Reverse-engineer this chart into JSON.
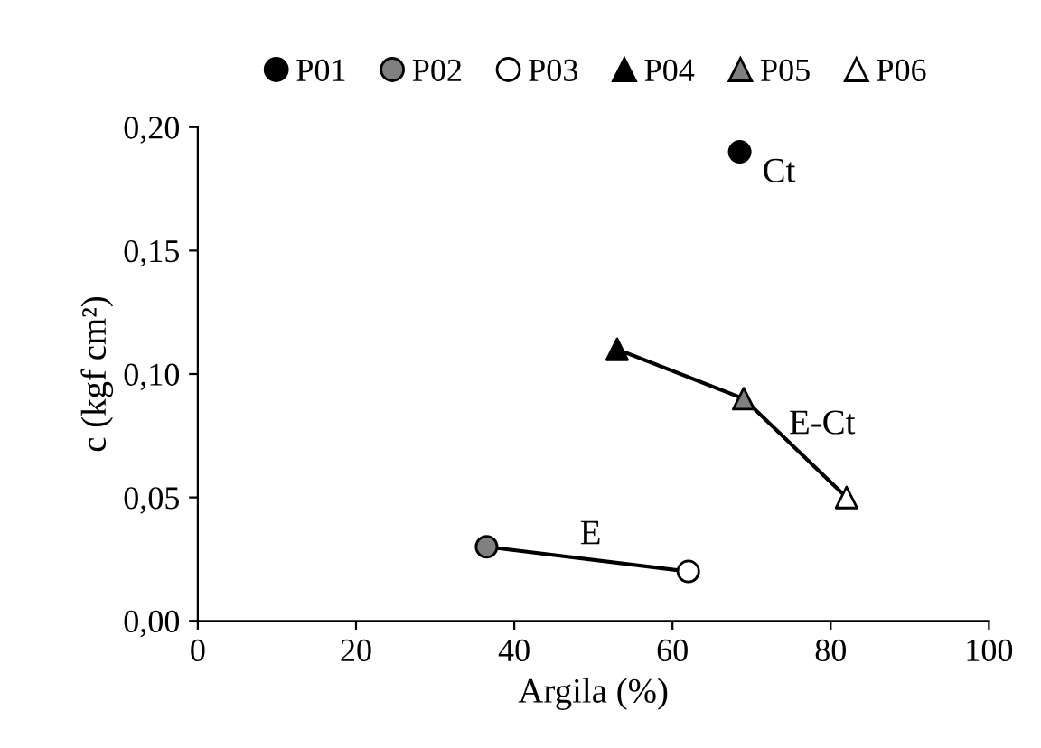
{
  "chart_data": {
    "type": "scatter",
    "xlabel": "Argila (%)",
    "ylabel": "c (kgf cm²)",
    "xlim": [
      0,
      100
    ],
    "xticks": [
      0,
      20,
      40,
      60,
      80,
      100
    ],
    "ylim": [
      0,
      0.2
    ],
    "yticks": [
      {
        "value": 0,
        "label": "0,00"
      },
      {
        "value": 0.05,
        "label": "0,05"
      },
      {
        "value": 0.1,
        "label": "0,10"
      },
      {
        "value": 0.15,
        "label": "0,15"
      },
      {
        "value": 0.2,
        "label": "0,20"
      }
    ],
    "grid": false,
    "legend": "top",
    "series": [
      {
        "type": "line",
        "color": "#000000",
        "marker": "none",
        "x": [
          36.5,
          62
        ],
        "values": [
          0.03,
          0.02
        ]
      },
      {
        "type": "line",
        "color": "#000000",
        "marker": "none",
        "x": [
          53,
          69,
          82
        ],
        "values": [
          0.11,
          0.09,
          0.05
        ]
      },
      {
        "name": "P01",
        "color": "#000000",
        "marker": "circle",
        "x": [
          68.5
        ],
        "values": [
          0.19
        ]
      },
      {
        "name": "P02",
        "color": "#808080",
        "marker": "circle",
        "x": [
          36.5
        ],
        "values": [
          0.03
        ]
      },
      {
        "name": "P03",
        "color": "#ffffff",
        "marker": "circle",
        "x": [
          62
        ],
        "values": [
          0.02
        ]
      },
      {
        "name": "P04",
        "color": "#000000",
        "marker": "triangle",
        "x": [
          53
        ],
        "values": [
          0.11
        ]
      },
      {
        "name": "P05",
        "color": "#808080",
        "marker": "triangle",
        "x": [
          69
        ],
        "values": [
          0.09
        ]
      },
      {
        "name": "P06",
        "color": "#ffffff",
        "marker": "triangle",
        "x": [
          82
        ],
        "values": [
          0.05
        ]
      }
    ],
    "annotations": [
      {
        "text": "Ct",
        "x": 68.5,
        "y": 0.19
      },
      {
        "text": "E-Ct",
        "x": 69,
        "y": 0.09
      },
      {
        "text": "E",
        "x": 49.25,
        "y": 0.025
      }
    ]
  }
}
